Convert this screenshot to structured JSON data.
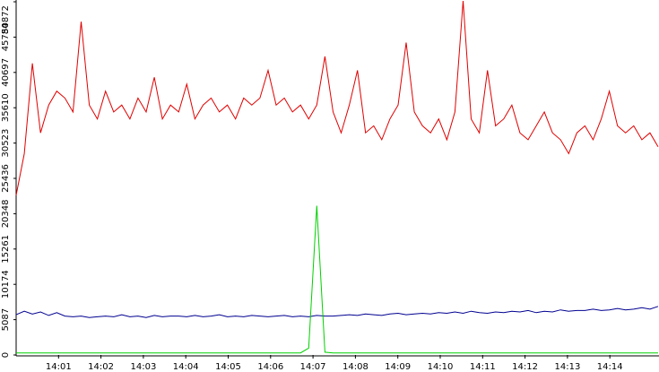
{
  "chart_data": {
    "type": "line",
    "xticks": [
      "14:01",
      "14:02",
      "14:03",
      "14:04",
      "14:05",
      "14:06",
      "14:07",
      "14:08",
      "14:09",
      "14:10",
      "14:11",
      "14:12",
      "14:13",
      "14:14"
    ],
    "ylim": [
      0,
      50872
    ],
    "yticks": [
      0,
      5087,
      10174,
      15261,
      20348,
      25436,
      30523,
      35610,
      40697,
      45784,
      50872
    ],
    "series": [
      {
        "color": "#e00000",
        "values": [
          23000,
          29000,
          42000,
          32000,
          36000,
          38000,
          37000,
          35000,
          48000,
          36000,
          34000,
          38000,
          35000,
          36000,
          34000,
          37000,
          35000,
          40000,
          34000,
          36000,
          35000,
          39000,
          34000,
          36000,
          37000,
          35000,
          36000,
          34000,
          37000,
          36000,
          37000,
          41000,
          36000,
          37000,
          35000,
          36000,
          34000,
          36000,
          43000,
          35000,
          32000,
          36000,
          41000,
          32000,
          33000,
          31000,
          34000,
          36000,
          45000,
          35000,
          33000,
          32000,
          34000,
          31000,
          35000,
          51000,
          34000,
          32000,
          41000,
          33000,
          34000,
          36000,
          32000,
          31000,
          33000,
          35000,
          32000,
          31000,
          29000,
          32000,
          33000,
          31000,
          34000,
          38000,
          33000,
          32000,
          33000,
          31000,
          32000,
          30000
        ]
      },
      {
        "color": "#000090",
        "values": [
          5800,
          6300,
          5900,
          6200,
          5700,
          6100,
          5600,
          5500,
          5600,
          5400,
          5500,
          5600,
          5500,
          5800,
          5500,
          5600,
          5400,
          5700,
          5500,
          5600,
          5600,
          5500,
          5700,
          5500,
          5600,
          5800,
          5500,
          5600,
          5500,
          5700,
          5600,
          5500,
          5600,
          5700,
          5500,
          5600,
          5500,
          5700,
          5600,
          5600,
          5700,
          5800,
          5700,
          5900,
          5800,
          5700,
          5900,
          6000,
          5800,
          5900,
          6000,
          5900,
          6100,
          6000,
          6200,
          6000,
          6300,
          6100,
          6000,
          6200,
          6100,
          6300,
          6200,
          6400,
          6100,
          6300,
          6200,
          6500,
          6300,
          6400,
          6400,
          6600,
          6400,
          6500,
          6700,
          6500,
          6600,
          6800,
          6600,
          7000
        ]
      },
      {
        "color": "#00d000",
        "values": [
          300,
          300,
          300,
          300,
          300,
          300,
          300,
          300,
          300,
          300,
          300,
          300,
          300,
          300,
          300,
          300,
          300,
          300,
          300,
          300,
          300,
          300,
          300,
          300,
          300,
          300,
          300,
          300,
          300,
          300,
          300,
          300,
          300,
          300,
          300,
          300,
          1000,
          21500,
          400,
          300,
          300,
          300,
          300,
          300,
          300,
          300,
          300,
          300,
          300,
          300,
          300,
          300,
          300,
          300,
          300,
          300,
          300,
          300,
          300,
          300,
          300,
          300,
          300,
          300,
          300,
          300,
          300,
          300,
          300,
          300,
          300,
          300,
          300,
          300,
          300,
          300,
          300,
          300,
          300,
          300
        ]
      }
    ]
  }
}
